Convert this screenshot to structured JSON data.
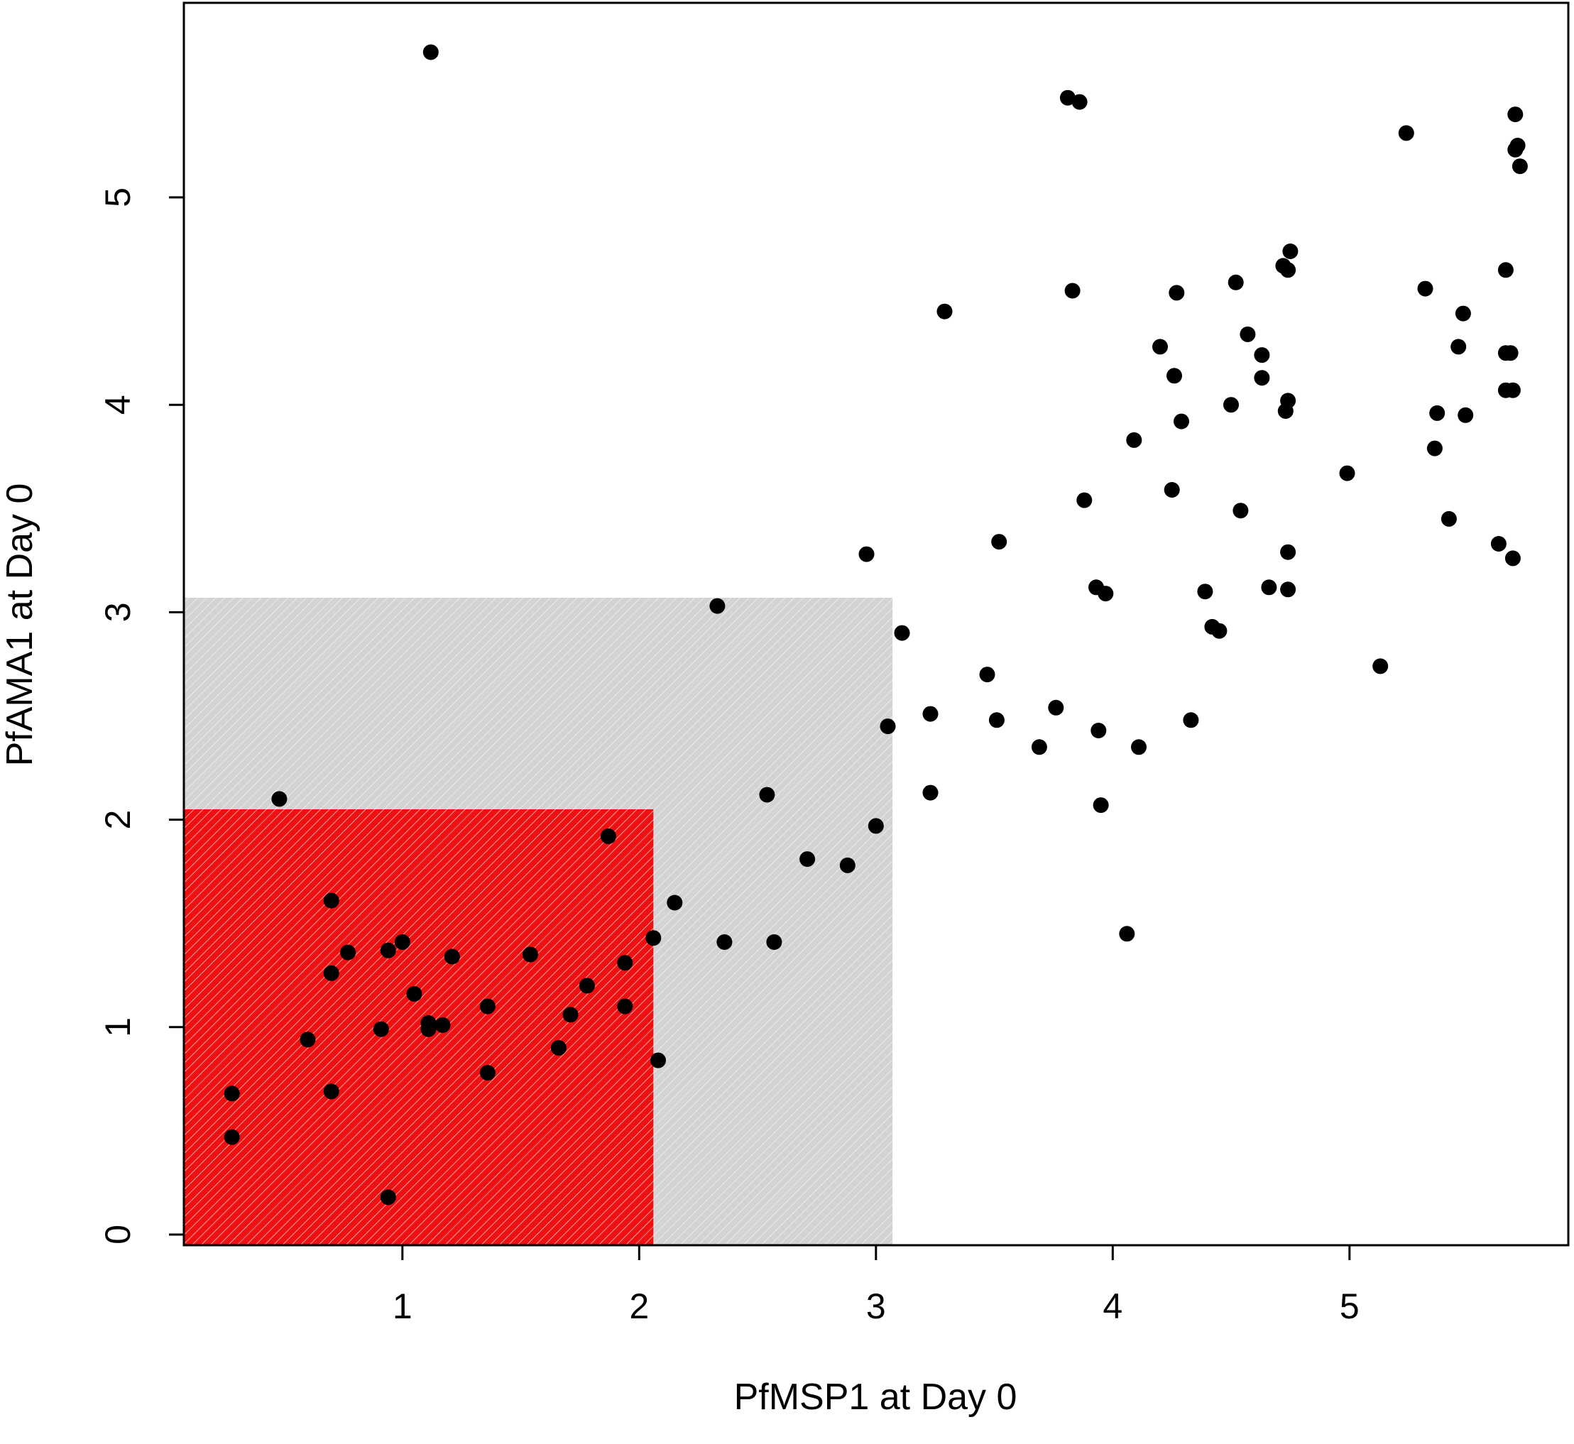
{
  "chart_data": {
    "type": "scatter",
    "title": "",
    "xlabel": "PfMSP1 at Day 0",
    "ylabel": "PfAMA1 at Day 0",
    "xlim": [
      0.08,
      5.93
    ],
    "ylim": [
      -0.05,
      5.93
    ],
    "x_ticks": [
      "1",
      "2",
      "3",
      "4",
      "5"
    ],
    "x_tick_values": [
      1,
      2,
      3,
      4,
      5
    ],
    "y_ticks": [
      "0",
      "1",
      "2",
      "3",
      "4",
      "5"
    ],
    "y_tick_values": [
      0,
      1,
      2,
      3,
      4,
      5
    ],
    "grid": false,
    "legend": "none",
    "regions": [
      {
        "id": "gray",
        "x0": 0.08,
        "x1": 3.07,
        "y0": -0.05,
        "y1": 3.07,
        "color": "#d0d0d0",
        "pattern": "diagonal-hatch"
      },
      {
        "id": "red",
        "x0": 0.08,
        "x1": 2.06,
        "y0": -0.05,
        "y1": 2.05,
        "color": "#ee1111",
        "pattern": "diagonal-hatch"
      }
    ],
    "point_color": "#000000",
    "points": [
      [
        1.12,
        5.7
      ],
      [
        0.48,
        2.1
      ],
      [
        0.7,
        1.61
      ],
      [
        0.77,
        1.36
      ],
      [
        0.7,
        1.26
      ],
      [
        0.6,
        0.94
      ],
      [
        0.7,
        0.69
      ],
      [
        0.28,
        0.68
      ],
      [
        0.28,
        0.47
      ],
      [
        0.94,
        0.18
      ],
      [
        0.94,
        1.37
      ],
      [
        1.0,
        1.41
      ],
      [
        1.05,
        1.16
      ],
      [
        0.91,
        0.99
      ],
      [
        1.11,
        1.02
      ],
      [
        1.11,
        0.99
      ],
      [
        1.17,
        1.01
      ],
      [
        1.21,
        1.34
      ],
      [
        1.36,
        1.1
      ],
      [
        1.36,
        0.78
      ],
      [
        1.54,
        1.35
      ],
      [
        1.66,
        0.9
      ],
      [
        1.71,
        1.06
      ],
      [
        1.78,
        1.2
      ],
      [
        1.87,
        1.92
      ],
      [
        1.94,
        1.31
      ],
      [
        1.94,
        1.1
      ],
      [
        2.06,
        1.43
      ],
      [
        2.08,
        0.84
      ],
      [
        2.15,
        1.6
      ],
      [
        2.33,
        3.03
      ],
      [
        2.36,
        1.41
      ],
      [
        2.54,
        2.12
      ],
      [
        2.57,
        1.41
      ],
      [
        2.71,
        1.81
      ],
      [
        2.88,
        1.78
      ],
      [
        2.96,
        3.28
      ],
      [
        3.0,
        1.97
      ],
      [
        3.05,
        2.45
      ],
      [
        3.11,
        2.9
      ],
      [
        3.23,
        2.51
      ],
      [
        3.23,
        2.13
      ],
      [
        3.29,
        4.45
      ],
      [
        3.47,
        2.7
      ],
      [
        3.51,
        2.48
      ],
      [
        3.52,
        3.34
      ],
      [
        3.69,
        2.35
      ],
      [
        3.76,
        2.54
      ],
      [
        3.81,
        5.48
      ],
      [
        3.83,
        4.55
      ],
      [
        3.86,
        5.46
      ],
      [
        3.88,
        3.54
      ],
      [
        3.93,
        3.12
      ],
      [
        3.94,
        2.43
      ],
      [
        3.95,
        2.07
      ],
      [
        3.97,
        3.09
      ],
      [
        4.06,
        1.45
      ],
      [
        4.09,
        3.83
      ],
      [
        4.11,
        2.35
      ],
      [
        4.2,
        4.28
      ],
      [
        4.25,
        3.59
      ],
      [
        4.26,
        4.14
      ],
      [
        4.27,
        4.54
      ],
      [
        4.29,
        3.92
      ],
      [
        4.33,
        2.48
      ],
      [
        4.39,
        3.1
      ],
      [
        4.42,
        2.93
      ],
      [
        4.45,
        2.91
      ],
      [
        4.5,
        4.0
      ],
      [
        4.52,
        4.59
      ],
      [
        4.54,
        3.49
      ],
      [
        4.57,
        4.34
      ],
      [
        4.63,
        4.24
      ],
      [
        4.63,
        4.13
      ],
      [
        4.66,
        3.12
      ],
      [
        4.72,
        4.67
      ],
      [
        4.73,
        3.97
      ],
      [
        4.74,
        4.65
      ],
      [
        4.74,
        4.02
      ],
      [
        4.74,
        3.29
      ],
      [
        4.74,
        3.11
      ],
      [
        4.75,
        4.74
      ],
      [
        4.99,
        3.67
      ],
      [
        5.13,
        2.74
      ],
      [
        5.24,
        5.31
      ],
      [
        5.32,
        4.56
      ],
      [
        5.36,
        3.79
      ],
      [
        5.37,
        3.96
      ],
      [
        5.42,
        3.45
      ],
      [
        5.46,
        4.28
      ],
      [
        5.48,
        4.44
      ],
      [
        5.49,
        3.95
      ],
      [
        5.63,
        3.33
      ],
      [
        5.66,
        4.65
      ],
      [
        5.66,
        4.07
      ],
      [
        5.66,
        4.25
      ],
      [
        5.68,
        4.25
      ],
      [
        5.69,
        4.07
      ],
      [
        5.69,
        3.26
      ],
      [
        5.7,
        5.4
      ],
      [
        5.7,
        5.23
      ],
      [
        5.71,
        5.25
      ],
      [
        5.72,
        5.15
      ]
    ]
  }
}
